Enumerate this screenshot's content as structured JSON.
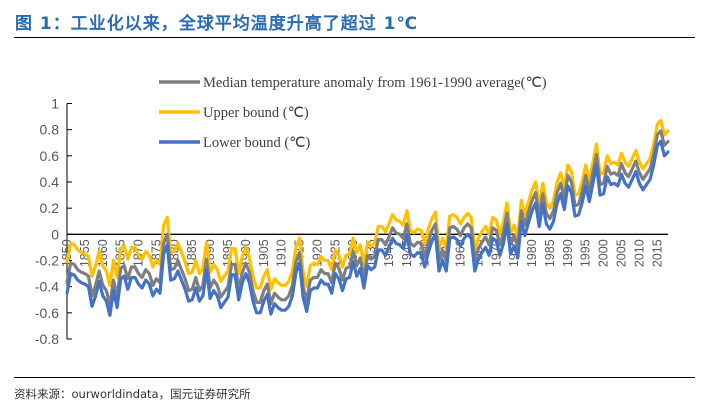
{
  "figure": {
    "title": "图 1：工业化以来，全球平均温度升高了超过 1℃",
    "source": "资料来源：ourworldindata，国元证券研究所"
  },
  "colors": {
    "title": "#2b6cb0",
    "median": "#7f7f7f",
    "upper": "#ffc000",
    "lower": "#4472c4",
    "axis": "#000000",
    "tick_text": "#595959"
  },
  "chart_data": {
    "type": "line",
    "title": "",
    "xlabel": "",
    "ylabel": "",
    "ylim": [
      -0.8,
      1
    ],
    "yticks": [
      1,
      0.8,
      0.6,
      0.4,
      0.2,
      0,
      -0.2,
      -0.4,
      -0.6,
      -0.8
    ],
    "ytick_labels": [
      "1",
      "0.8",
      "0.6",
      "0.4",
      "0.2",
      "0",
      "-0.2",
      "-0.4",
      "-0.6",
      "-0.8"
    ],
    "xlim": [
      1850,
      2018
    ],
    "xtick_labels": [
      "1850",
      "1855",
      "1860",
      "1865",
      "1870",
      "1875",
      "1880",
      "1885",
      "1890",
      "1895",
      "1900",
      "1905",
      "1910",
      "1915",
      "1920",
      "1925",
      "1930",
      "1935",
      "1940",
      "1945",
      "1950",
      "1955",
      "1960",
      "1965",
      "1970",
      "1975",
      "1980",
      "1985",
      "1990",
      "1995",
      "2000",
      "2005",
      "2010",
      "2015"
    ],
    "grid": false,
    "legend_position": "top-left",
    "x_start": 1850,
    "series": [
      {
        "name": "Median temperature anomaly from 1961-1990 average(℃)",
        "key": "median",
        "values": [
          -0.37,
          -0.22,
          -0.23,
          -0.27,
          -0.29,
          -0.3,
          -0.32,
          -0.47,
          -0.39,
          -0.28,
          -0.39,
          -0.43,
          -0.54,
          -0.35,
          -0.48,
          -0.26,
          -0.24,
          -0.34,
          -0.25,
          -0.25,
          -0.3,
          -0.33,
          -0.27,
          -0.3,
          -0.39,
          -0.34,
          -0.37,
          -0.07,
          0.0,
          -0.27,
          -0.26,
          -0.2,
          -0.27,
          -0.34,
          -0.43,
          -0.42,
          -0.33,
          -0.43,
          -0.39,
          -0.19,
          -0.41,
          -0.35,
          -0.39,
          -0.48,
          -0.44,
          -0.4,
          -0.23,
          -0.23,
          -0.42,
          -0.29,
          -0.22,
          -0.29,
          -0.43,
          -0.52,
          -0.52,
          -0.43,
          -0.38,
          -0.53,
          -0.45,
          -0.48,
          -0.5,
          -0.5,
          -0.47,
          -0.39,
          -0.21,
          -0.14,
          -0.4,
          -0.51,
          -0.35,
          -0.33,
          -0.33,
          -0.27,
          -0.3,
          -0.3,
          -0.37,
          -0.22,
          -0.26,
          -0.35,
          -0.26,
          -0.25,
          -0.13,
          -0.24,
          -0.18,
          -0.33,
          -0.16,
          -0.19,
          -0.17,
          -0.04,
          -0.04,
          -0.08,
          -0.02,
          0.05,
          0.01,
          0.0,
          -0.03,
          0.08,
          -0.07,
          -0.09,
          -0.06,
          -0.07,
          -0.17,
          -0.06,
          0.03,
          0.08,
          -0.2,
          -0.12,
          -0.2,
          0.05,
          0.06,
          0.04,
          -0.01,
          0.05,
          0.08,
          0.05,
          -0.2,
          -0.11,
          -0.06,
          -0.02,
          -0.08,
          0.05,
          0.03,
          -0.08,
          0.01,
          0.16,
          -0.07,
          -0.01,
          -0.1,
          0.18,
          0.07,
          0.17,
          0.26,
          0.32,
          0.14,
          0.31,
          0.16,
          0.12,
          0.18,
          0.32,
          0.39,
          0.27,
          0.45,
          0.4,
          0.22,
          0.23,
          0.32,
          0.45,
          0.33,
          0.47,
          0.61,
          0.38,
          0.39,
          0.52,
          0.46,
          0.47,
          0.45,
          0.54,
          0.47,
          0.44,
          0.5,
          0.56,
          0.47,
          0.42,
          0.46,
          0.5,
          0.61,
          0.76,
          0.79,
          0.68,
          0.71
        ],
        "color": "#7f7f7f"
      },
      {
        "name": "Upper bound (℃)",
        "key": "upper",
        "values": [
          -0.21,
          -0.07,
          -0.08,
          -0.12,
          -0.14,
          -0.15,
          -0.17,
          -0.32,
          -0.24,
          -0.13,
          -0.24,
          -0.28,
          -0.39,
          -0.2,
          -0.33,
          -0.11,
          -0.09,
          -0.19,
          -0.1,
          -0.1,
          -0.16,
          -0.19,
          -0.13,
          -0.16,
          -0.25,
          -0.2,
          -0.23,
          0.07,
          0.13,
          -0.14,
          -0.13,
          -0.07,
          -0.14,
          -0.21,
          -0.3,
          -0.29,
          -0.2,
          -0.3,
          -0.26,
          -0.06,
          -0.29,
          -0.23,
          -0.27,
          -0.36,
          -0.32,
          -0.28,
          -0.11,
          -0.11,
          -0.3,
          -0.17,
          -0.1,
          -0.18,
          -0.32,
          -0.41,
          -0.41,
          -0.32,
          -0.27,
          -0.42,
          -0.34,
          -0.37,
          -0.39,
          -0.39,
          -0.36,
          -0.28,
          -0.1,
          -0.03,
          -0.29,
          -0.4,
          -0.24,
          -0.22,
          -0.23,
          -0.17,
          -0.2,
          -0.2,
          -0.27,
          -0.12,
          -0.16,
          -0.25,
          -0.16,
          -0.15,
          -0.03,
          -0.14,
          -0.08,
          -0.23,
          -0.06,
          -0.09,
          -0.07,
          0.06,
          0.06,
          0.02,
          0.08,
          0.15,
          0.11,
          0.1,
          0.07,
          0.18,
          0.03,
          0.01,
          0.04,
          0.03,
          -0.07,
          0.04,
          0.12,
          0.17,
          -0.11,
          -0.03,
          -0.11,
          0.14,
          0.15,
          0.13,
          0.08,
          0.13,
          0.16,
          0.13,
          -0.12,
          -0.03,
          0.02,
          0.06,
          0.0,
          0.13,
          0.11,
          0.0,
          0.09,
          0.24,
          0.01,
          0.07,
          -0.02,
          0.26,
          0.15,
          0.25,
          0.34,
          0.4,
          0.22,
          0.39,
          0.24,
          0.2,
          0.26,
          0.4,
          0.47,
          0.35,
          0.53,
          0.48,
          0.3,
          0.31,
          0.4,
          0.53,
          0.41,
          0.55,
          0.69,
          0.46,
          0.47,
          0.6,
          0.54,
          0.55,
          0.53,
          0.62,
          0.55,
          0.52,
          0.58,
          0.64,
          0.55,
          0.5,
          0.54,
          0.58,
          0.69,
          0.84,
          0.87,
          0.76,
          0.79
        ],
        "color": "#ffc000"
      },
      {
        "name": "Lower bound (℃)",
        "key": "lower",
        "values": [
          -0.45,
          -0.3,
          -0.31,
          -0.35,
          -0.37,
          -0.38,
          -0.4,
          -0.55,
          -0.47,
          -0.36,
          -0.47,
          -0.51,
          -0.62,
          -0.43,
          -0.56,
          -0.34,
          -0.32,
          -0.42,
          -0.33,
          -0.33,
          -0.38,
          -0.41,
          -0.35,
          -0.38,
          -0.47,
          -0.42,
          -0.45,
          -0.15,
          -0.08,
          -0.35,
          -0.34,
          -0.28,
          -0.35,
          -0.42,
          -0.51,
          -0.5,
          -0.41,
          -0.51,
          -0.47,
          -0.27,
          -0.49,
          -0.43,
          -0.47,
          -0.56,
          -0.52,
          -0.48,
          -0.31,
          -0.31,
          -0.5,
          -0.37,
          -0.3,
          -0.37,
          -0.51,
          -0.6,
          -0.6,
          -0.51,
          -0.46,
          -0.61,
          -0.53,
          -0.56,
          -0.58,
          -0.58,
          -0.55,
          -0.47,
          -0.29,
          -0.22,
          -0.48,
          -0.59,
          -0.43,
          -0.41,
          -0.41,
          -0.35,
          -0.38,
          -0.38,
          -0.45,
          -0.3,
          -0.34,
          -0.43,
          -0.34,
          -0.33,
          -0.21,
          -0.32,
          -0.26,
          -0.41,
          -0.24,
          -0.27,
          -0.25,
          -0.12,
          -0.12,
          -0.16,
          -0.1,
          -0.03,
          -0.07,
          -0.08,
          -0.11,
          0.0,
          -0.15,
          -0.17,
          -0.14,
          -0.15,
          -0.25,
          -0.14,
          -0.05,
          0.0,
          -0.28,
          -0.2,
          -0.28,
          -0.03,
          -0.02,
          -0.04,
          -0.09,
          -0.03,
          0.0,
          -0.03,
          -0.28,
          -0.19,
          -0.14,
          -0.1,
          -0.16,
          -0.03,
          -0.05,
          -0.16,
          -0.07,
          0.08,
          -0.15,
          -0.09,
          -0.18,
          0.1,
          -0.01,
          0.09,
          0.18,
          0.24,
          0.06,
          0.23,
          0.08,
          0.04,
          0.1,
          0.24,
          0.31,
          0.19,
          0.37,
          0.32,
          0.14,
          0.15,
          0.24,
          0.37,
          0.25,
          0.39,
          0.53,
          0.3,
          0.31,
          0.44,
          0.38,
          0.39,
          0.37,
          0.46,
          0.39,
          0.36,
          0.42,
          0.48,
          0.39,
          0.34,
          0.38,
          0.42,
          0.53,
          0.68,
          0.71,
          0.6,
          0.63
        ],
        "color": "#4472c4"
      }
    ]
  }
}
